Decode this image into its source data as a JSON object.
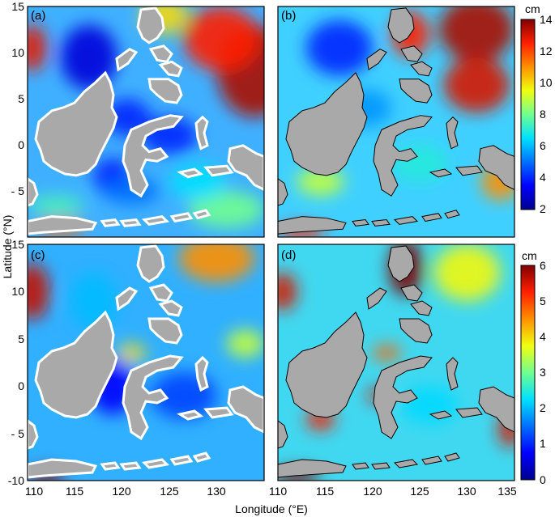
{
  "figure": {
    "xlabel": "Longitude (°E)",
    "ylabel": "Latitude (°N)"
  },
  "chart_data": [
    {
      "type": "heatmap",
      "panel": "(a)",
      "xlim": [
        110,
        135
      ],
      "ylim": [
        -10,
        15
      ],
      "xticks": [
        "110",
        "115",
        "120",
        "125",
        "130",
        "135"
      ],
      "yticks": [
        "-10",
        "- 5",
        "0",
        "5",
        "10",
        "15"
      ],
      "colorbar": "top",
      "land_outline": "white",
      "blobs": [
        {
          "x": 134.0,
          "y": 8.0,
          "v": 13.5,
          "rx": 4.0,
          "ry": 5.0
        },
        {
          "x": 130.5,
          "y": 11.5,
          "v": 12.5,
          "rx": 4.0,
          "ry": 3.5
        },
        {
          "x": 110.5,
          "y": 10.5,
          "v": 12.8,
          "rx": 1.5,
          "ry": 2.5
        },
        {
          "x": 124.5,
          "y": 14.0,
          "v": 10.0,
          "rx": 2.5,
          "ry": 2.0
        },
        {
          "x": 116.5,
          "y": 9.5,
          "v": 3.0,
          "rx": 3.0,
          "ry": 3.5
        },
        {
          "x": 120.5,
          "y": 3.0,
          "v": 4.0,
          "rx": 2.5,
          "ry": 2.0
        },
        {
          "x": 119.0,
          "y": -3.5,
          "v": 3.8,
          "rx": 2.0,
          "ry": 2.0
        },
        {
          "x": 125.0,
          "y": 1.0,
          "v": 4.0,
          "rx": 3.0,
          "ry": 2.0
        },
        {
          "x": 121.0,
          "y": -5.0,
          "v": 5.0,
          "rx": 3.0,
          "ry": 1.5
        },
        {
          "x": 113.0,
          "y": -6.5,
          "v": 7.5,
          "rx": 3.0,
          "ry": 1.0
        },
        {
          "x": 113.5,
          "y": -9.0,
          "v": 11.5,
          "rx": 2.5,
          "ry": 0.8
        },
        {
          "x": 131.0,
          "y": -7.0,
          "v": 8.0,
          "rx": 4.0,
          "ry": 2.0
        },
        {
          "x": 128.0,
          "y": -4.0,
          "v": 6.5,
          "rx": 3.0,
          "ry": 2.0
        }
      ]
    },
    {
      "type": "heatmap",
      "panel": "(b)",
      "xlim": [
        110,
        135
      ],
      "ylim": [
        -10,
        15
      ],
      "xticks": [
        "110",
        "115",
        "120",
        "125",
        "130",
        "135"
      ],
      "yticks": [
        "-10",
        "- 5",
        "0",
        "5",
        "10",
        "15"
      ],
      "colorbar": "top",
      "land_outline": "black",
      "blobs": [
        {
          "x": 131.0,
          "y": 12.5,
          "v": 13.5,
          "rx": 4.0,
          "ry": 3.5
        },
        {
          "x": 131.0,
          "y": 6.5,
          "v": 13.0,
          "rx": 3.5,
          "ry": 3.0
        },
        {
          "x": 124.0,
          "y": 12.0,
          "v": 12.5,
          "rx": 2.0,
          "ry": 2.5
        },
        {
          "x": 116.5,
          "y": 10.5,
          "v": 4.0,
          "rx": 3.5,
          "ry": 3.0
        },
        {
          "x": 119.5,
          "y": 4.0,
          "v": 5.5,
          "rx": 2.5,
          "ry": 2.0
        },
        {
          "x": 114.5,
          "y": -4.0,
          "v": 9.0,
          "rx": 2.5,
          "ry": 1.5
        },
        {
          "x": 112.5,
          "y": -9.5,
          "v": 12.5,
          "rx": 2.5,
          "ry": 0.8
        },
        {
          "x": 133.5,
          "y": -4.0,
          "v": 11.0,
          "rx": 2.0,
          "ry": 2.0
        },
        {
          "x": 125.0,
          "y": -2.0,
          "v": 7.0,
          "rx": 3.0,
          "ry": 2.0
        }
      ]
    },
    {
      "type": "heatmap",
      "panel": "(c)",
      "xlim": [
        110,
        135
      ],
      "ylim": [
        -10,
        15
      ],
      "xticks": [
        "110",
        "115",
        "120",
        "125",
        "130",
        "135"
      ],
      "yticks": [
        "-10",
        "- 5",
        "0",
        "5",
        "10",
        "15"
      ],
      "colorbar": "bottom",
      "land_outline": "white",
      "blobs": [
        {
          "x": 110.5,
          "y": 10.0,
          "v": 5.6,
          "rx": 1.8,
          "ry": 3.0
        },
        {
          "x": 130.0,
          "y": 13.5,
          "v": 4.5,
          "rx": 4.0,
          "ry": 2.5
        },
        {
          "x": 133.0,
          "y": 4.5,
          "v": 3.5,
          "rx": 2.0,
          "ry": 1.5
        },
        {
          "x": 121.0,
          "y": 3.5,
          "v": 4.0,
          "rx": 1.5,
          "ry": 1.0
        },
        {
          "x": 119.0,
          "y": 0.0,
          "v": 0.8,
          "rx": 2.5,
          "ry": 3.0
        },
        {
          "x": 126.5,
          "y": -1.0,
          "v": 1.2,
          "rx": 3.5,
          "ry": 2.5
        },
        {
          "x": 117.0,
          "y": 9.0,
          "v": 2.0,
          "rx": 2.5,
          "ry": 3.0
        },
        {
          "x": 112.0,
          "y": -9.5,
          "v": 6.0,
          "rx": 2.0,
          "ry": 0.8
        }
      ]
    },
    {
      "type": "heatmap",
      "panel": "(d)",
      "xlim": [
        110,
        135
      ],
      "ylim": [
        -10,
        15
      ],
      "xticks": [
        "110",
        "115",
        "120",
        "125",
        "130",
        "135"
      ],
      "yticks": [
        "-10",
        "- 5",
        "0",
        "5",
        "10",
        "15"
      ],
      "colorbar": "bottom",
      "land_outline": "black",
      "blobs": [
        {
          "x": 123.5,
          "y": 12.5,
          "v": 6.0,
          "rx": 1.8,
          "ry": 3.0
        },
        {
          "x": 110.5,
          "y": 10.0,
          "v": 5.5,
          "rx": 1.5,
          "ry": 2.0
        },
        {
          "x": 130.0,
          "y": 12.0,
          "v": 3.8,
          "rx": 3.5,
          "ry": 3.0
        },
        {
          "x": 121.5,
          "y": 3.5,
          "v": 4.8,
          "rx": 1.5,
          "ry": 0.8
        },
        {
          "x": 120.5,
          "y": -1.0,
          "v": 5.5,
          "rx": 1.0,
          "ry": 0.8
        },
        {
          "x": 114.5,
          "y": -3.5,
          "v": 5.3,
          "rx": 1.5,
          "ry": 1.2
        },
        {
          "x": 112.0,
          "y": -9.5,
          "v": 6.0,
          "rx": 2.5,
          "ry": 0.8
        },
        {
          "x": 134.5,
          "y": -4.5,
          "v": 5.5,
          "rx": 1.2,
          "ry": 2.0
        },
        {
          "x": 126.0,
          "y": -2.0,
          "v": 2.2,
          "rx": 3.0,
          "ry": 2.0
        }
      ]
    }
  ],
  "colorbars": [
    {
      "unit": "cm",
      "min": 2,
      "max": 14,
      "ticks": [
        "14",
        "12",
        "10",
        "8",
        "6",
        "4",
        "2"
      ]
    },
    {
      "unit": "cm",
      "min": 0,
      "max": 6,
      "ticks": [
        "6",
        "5",
        "4",
        "3",
        "2",
        "1",
        "0"
      ]
    }
  ],
  "colors": {
    "land": "#a9a9a9",
    "colormap": [
      "#00008f",
      "#0000ff",
      "#0070ff",
      "#00e0ff",
      "#70ff90",
      "#f0ff10",
      "#ff9000",
      "#ff2000",
      "#800000"
    ]
  }
}
